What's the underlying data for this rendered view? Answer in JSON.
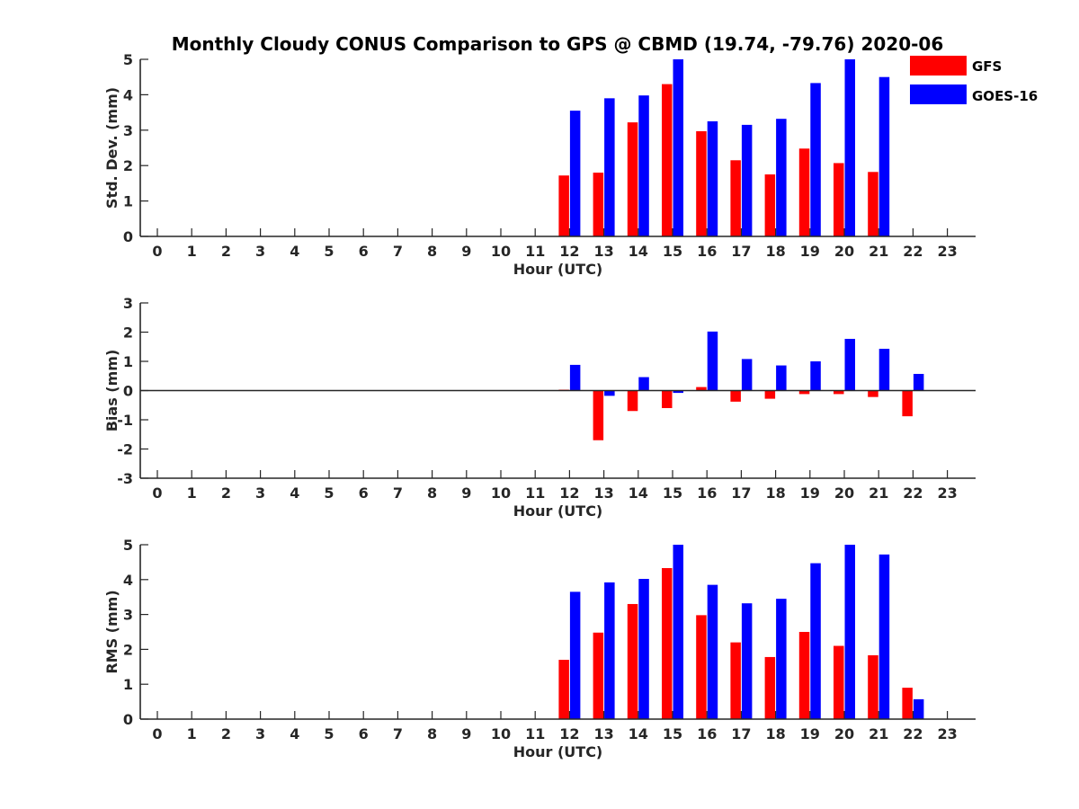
{
  "title": "Monthly Cloudy CONUS Comparison to GPS @ CBMD (19.74, -79.76) 2020-06",
  "legend": {
    "position": "top-right",
    "entries": [
      {
        "label": "GFS",
        "color": "#ff0000"
      },
      {
        "label": "GOES-16",
        "color": "#0000ff"
      }
    ]
  },
  "chart_data": [
    {
      "type": "bar",
      "xlabel": "Hour (UTC)",
      "ylabel": "Std. Dev. (mm)",
      "categories": [
        "0",
        "1",
        "2",
        "3",
        "4",
        "5",
        "6",
        "7",
        "8",
        "9",
        "10",
        "11",
        "12",
        "13",
        "14",
        "15",
        "16",
        "17",
        "18",
        "19",
        "20",
        "21",
        "22",
        "23"
      ],
      "ylim": [
        0,
        5
      ],
      "yticks": [
        "0",
        "1",
        "2",
        "3",
        "4",
        "5"
      ],
      "grid": false,
      "series": [
        {
          "name": "GFS",
          "color": "#ff0000",
          "values": [
            null,
            null,
            null,
            null,
            null,
            null,
            null,
            null,
            null,
            null,
            null,
            null,
            1.72,
            1.8,
            3.22,
            4.3,
            2.97,
            2.15,
            1.75,
            2.48,
            2.07,
            1.82,
            null,
            null
          ]
        },
        {
          "name": "GOES-16",
          "color": "#0000ff",
          "values": [
            null,
            null,
            null,
            null,
            null,
            null,
            null,
            null,
            null,
            null,
            null,
            null,
            3.55,
            3.9,
            3.98,
            5.0,
            3.25,
            3.15,
            3.32,
            4.33,
            5.0,
            4.5,
            null,
            null
          ]
        }
      ]
    },
    {
      "type": "bar",
      "xlabel": "Hour (UTC)",
      "ylabel": "Bias (mm)",
      "categories": [
        "0",
        "1",
        "2",
        "3",
        "4",
        "5",
        "6",
        "7",
        "8",
        "9",
        "10",
        "11",
        "12",
        "13",
        "14",
        "15",
        "16",
        "17",
        "18",
        "19",
        "20",
        "21",
        "22",
        "23"
      ],
      "ylim": [
        -3,
        3
      ],
      "yticks": [
        "-3",
        "-2",
        "-1",
        "0",
        "1",
        "2",
        "3"
      ],
      "grid": false,
      "zero_line": true,
      "series": [
        {
          "name": "GFS",
          "color": "#ff0000",
          "values": [
            null,
            null,
            null,
            null,
            null,
            null,
            null,
            null,
            null,
            null,
            null,
            null,
            0.03,
            -1.7,
            -0.7,
            -0.6,
            0.12,
            -0.38,
            -0.28,
            -0.12,
            -0.12,
            -0.22,
            -0.88,
            null
          ]
        },
        {
          "name": "GOES-16",
          "color": "#0000ff",
          "values": [
            null,
            null,
            null,
            null,
            null,
            null,
            null,
            null,
            null,
            null,
            null,
            null,
            0.88,
            -0.18,
            0.46,
            -0.08,
            2.02,
            1.08,
            0.86,
            1.0,
            1.77,
            1.43,
            0.57,
            null
          ]
        }
      ]
    },
    {
      "type": "bar",
      "xlabel": "Hour (UTC)",
      "ylabel": "RMS (mm)",
      "categories": [
        "0",
        "1",
        "2",
        "3",
        "4",
        "5",
        "6",
        "7",
        "8",
        "9",
        "10",
        "11",
        "12",
        "13",
        "14",
        "15",
        "16",
        "17",
        "18",
        "19",
        "20",
        "21",
        "22",
        "23"
      ],
      "ylim": [
        0,
        5
      ],
      "yticks": [
        "0",
        "1",
        "2",
        "3",
        "4",
        "5"
      ],
      "grid": false,
      "series": [
        {
          "name": "GFS",
          "color": "#ff0000",
          "values": [
            null,
            null,
            null,
            null,
            null,
            null,
            null,
            null,
            null,
            null,
            null,
            null,
            1.7,
            2.48,
            3.3,
            4.33,
            2.98,
            2.2,
            1.78,
            2.5,
            2.1,
            1.83,
            0.9,
            null
          ]
        },
        {
          "name": "GOES-16",
          "color": "#0000ff",
          "values": [
            null,
            null,
            null,
            null,
            null,
            null,
            null,
            null,
            null,
            null,
            null,
            null,
            3.65,
            3.92,
            4.02,
            5.0,
            3.85,
            3.32,
            3.45,
            4.47,
            5.0,
            4.72,
            0.57,
            null
          ]
        }
      ]
    }
  ]
}
